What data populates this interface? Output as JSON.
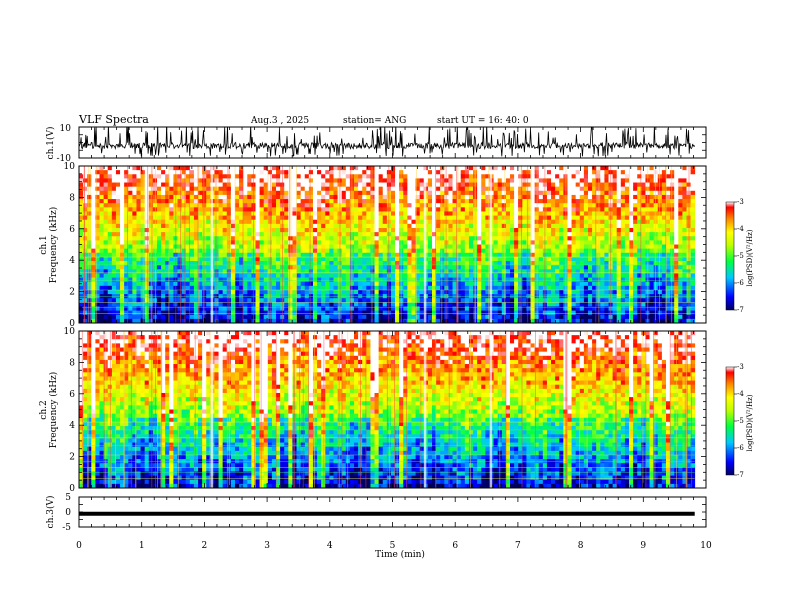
{
  "header": {
    "title": "VLF Spectra",
    "date": "Aug.3 , 2025",
    "station": "station= ANG",
    "start_ut": "start UT = 16: 40: 0"
  },
  "colors": {
    "spectrogram_low": "#000080",
    "spectrogram_high": "#ff1010",
    "trace": "#000000"
  },
  "chart_data": [
    {
      "type": "line",
      "id": "ch1-waveform",
      "ylabel": "ch.1(V)",
      "ylim": [
        -10,
        10
      ],
      "ytick_labels": [
        "10",
        "-10"
      ],
      "xlim": [
        0,
        10
      ],
      "baseline_v": -2,
      "data_end_min": 9.82,
      "description_values": "noisy waveform with frequent spikes to +10 V"
    },
    {
      "type": "heatmap",
      "id": "ch1-spectrogram",
      "ylabel_channel": "ch.1",
      "ylabel": "Frequency (kHz)",
      "ylim": [
        0,
        10
      ],
      "ytick_labels": [
        "0",
        "2",
        "4",
        "6",
        "8",
        "10"
      ],
      "xlim": [
        0,
        10
      ],
      "data_end_min": 9.82,
      "colorbar": {
        "label": "log(PSD)(V²/Hz)",
        "range": [
          -7,
          -3
        ],
        "tick_labels": [
          "-3",
          "-4",
          "-5",
          "-6",
          "-7"
        ]
      }
    },
    {
      "type": "heatmap",
      "id": "ch2-spectrogram",
      "ylabel_channel": "ch.2",
      "ylabel": "Frequency (kHz)",
      "ylim": [
        0,
        10
      ],
      "ytick_labels": [
        "0",
        "2",
        "4",
        "6",
        "8",
        "10"
      ],
      "xlim": [
        0,
        10
      ],
      "data_end_min": 9.82,
      "colorbar": {
        "label": "log(PSD)(V²/Hz)",
        "range": [
          -7,
          -3
        ],
        "tick_labels": [
          "-3",
          "-4",
          "-5",
          "-6",
          "-7"
        ]
      }
    },
    {
      "type": "line",
      "id": "ch3-waveform",
      "ylabel": "ch.3(V)",
      "ylim": [
        -5,
        5
      ],
      "ytick_labels": [
        "5",
        "0",
        "-5"
      ],
      "xlim": [
        0,
        10
      ],
      "baseline_v": -0.6,
      "data_end_min": 9.82
    }
  ],
  "x_axis": {
    "label": "Time (min)",
    "tick_labels": [
      "0",
      "1",
      "2",
      "3",
      "4",
      "5",
      "6",
      "7",
      "8",
      "9",
      "10"
    ]
  }
}
